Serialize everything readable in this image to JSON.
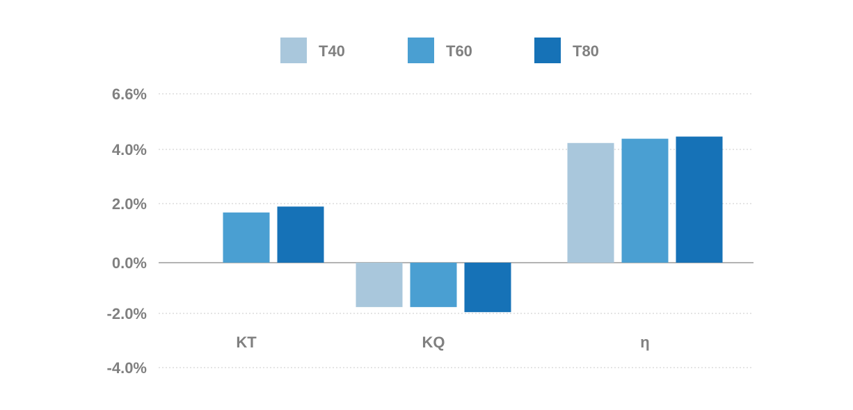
{
  "chart_data": {
    "type": "bar",
    "categories": [
      "KT",
      "KQ",
      "η"
    ],
    "series": [
      {
        "name": "T40",
        "color": "#a9c7dc",
        "values": [
          null,
          -1.75,
          4.3
        ]
      },
      {
        "name": "T60",
        "color": "#4a9fd2",
        "values": [
          1.7,
          -1.75,
          4.5
        ]
      },
      {
        "name": "T80",
        "color": "#1672b7",
        "values": [
          1.9,
          -1.95,
          4.6
        ]
      }
    ],
    "yticks": [
      {
        "value": 6.6,
        "label": "6.6%"
      },
      {
        "value": 4.0,
        "label": "4.0%"
      },
      {
        "value": 2.0,
        "label": "2.0%"
      },
      {
        "value": 0.0,
        "label": "0.0%"
      },
      {
        "value": -2.0,
        "label": "-2.0%"
      },
      {
        "value": -4.0,
        "label": "-4.0%"
      }
    ],
    "ylim": [
      -4.0,
      6.6
    ],
    "grid": true,
    "legend_position": "top-center",
    "title": "",
    "xlabel": "",
    "ylabel": ""
  }
}
